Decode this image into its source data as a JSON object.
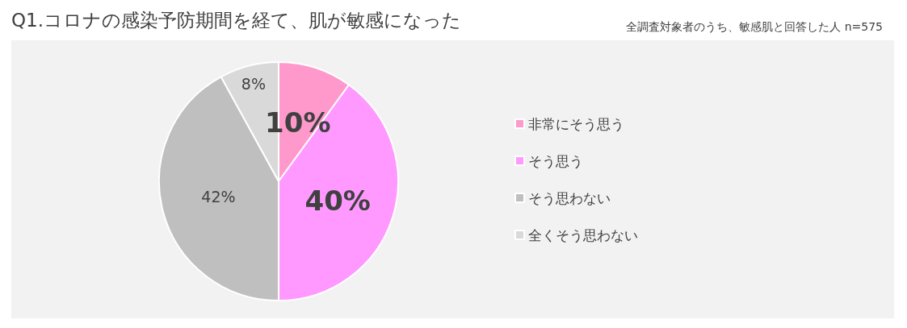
{
  "chart_data": {
    "type": "pie",
    "title": "Q1.コロナの感染予防期間を経て、肌が敏感になった",
    "subtitle": "全調査対象者のうち、敏感肌と回答した人 n=575",
    "categories": [
      "非常にそう思う",
      "そう思う",
      "そう思わない",
      "全くそう思わない"
    ],
    "values": [
      10,
      40,
      42,
      8
    ],
    "colors": [
      "#ff99cc",
      "#ff99ff",
      "#bfbfbf",
      "#d9d9d9"
    ],
    "value_labels": [
      "10%",
      "40%",
      "42%",
      "8%"
    ],
    "legend": "right"
  }
}
